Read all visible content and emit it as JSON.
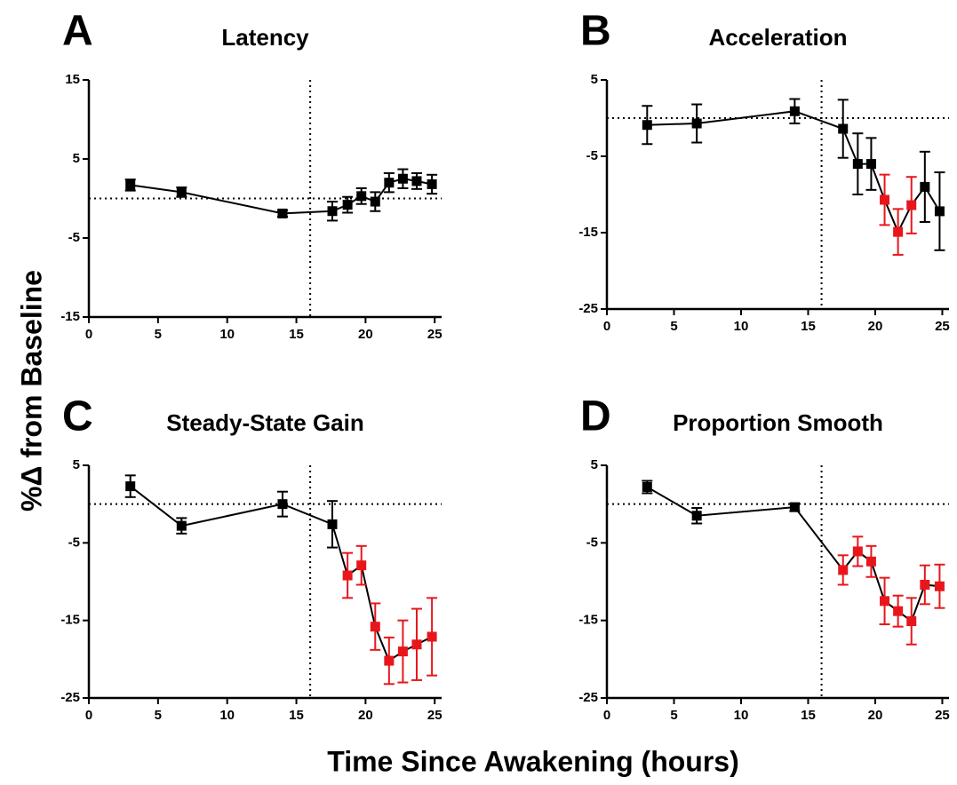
{
  "ylabel": "%Δ from Baseline",
  "xlabel": "Time Since Awakening (hours)",
  "chart_data": [
    {
      "type": "line",
      "panel_label": "A",
      "title": "Latency",
      "x": [
        3,
        6.7,
        14,
        17.6,
        18.7,
        19.7,
        20.7,
        21.7,
        22.7,
        23.7,
        24.8
      ],
      "values": [
        1.7,
        0.8,
        -1.9,
        -1.6,
        -0.8,
        0.3,
        -0.4,
        2,
        2.5,
        2.2,
        1.8
      ],
      "errors": [
        0.7,
        0.6,
        0.4,
        1.2,
        1,
        1,
        1.2,
        1.2,
        1.2,
        1,
        1.2
      ],
      "colors": [
        "#000000",
        "#000000",
        "#000000",
        "#000000",
        "#000000",
        "#000000",
        "#000000",
        "#000000",
        "#000000",
        "#000000",
        "#000000"
      ],
      "line_color": "#000000",
      "xlim": [
        0,
        25.5
      ],
      "ylim": [
        -15,
        15
      ],
      "xticks": [
        0,
        5,
        10,
        15,
        20,
        25
      ],
      "yticks": [
        -15,
        -5,
        5,
        15
      ],
      "vline": 16,
      "hline": 0
    },
    {
      "type": "line",
      "panel_label": "B",
      "title": "Acceleration",
      "x": [
        3,
        6.7,
        14,
        17.6,
        18.7,
        19.7,
        20.7,
        21.7,
        22.7,
        23.7,
        24.8
      ],
      "values": [
        -0.9,
        -0.7,
        0.9,
        -1.4,
        -6,
        -6,
        -10.7,
        -14.9,
        -11.4,
        -9,
        -12.2
      ],
      "errors": [
        2.5,
        2.5,
        1.6,
        3.8,
        4,
        3.4,
        3.3,
        3,
        3.7,
        4.6,
        5.1
      ],
      "colors": [
        "#000000",
        "#000000",
        "#000000",
        "#000000",
        "#000000",
        "#000000",
        "#e8161b",
        "#e8161b",
        "#e8161b",
        "#000000",
        "#000000"
      ],
      "line_color": "#000000",
      "xlim": [
        0,
        25.5
      ],
      "ylim": [
        -25,
        5
      ],
      "xticks": [
        0,
        5,
        10,
        15,
        20,
        25
      ],
      "yticks": [
        -25,
        -15,
        -5,
        5
      ],
      "vline": 16,
      "hline": 0
    },
    {
      "type": "line",
      "panel_label": "C",
      "title": "Steady-State Gain",
      "x": [
        3,
        6.7,
        14,
        17.6,
        18.7,
        19.7,
        20.7,
        21.7,
        22.7,
        23.7,
        24.8
      ],
      "values": [
        2.3,
        -2.8,
        0,
        -2.6,
        -9.2,
        -7.9,
        -15.8,
        -20.2,
        -19,
        -18.1,
        -17.1
      ],
      "errors": [
        1.4,
        1,
        1.6,
        3,
        2.9,
        2.5,
        3,
        3,
        4,
        4.6,
        5
      ],
      "colors": [
        "#000000",
        "#000000",
        "#000000",
        "#000000",
        "#e8161b",
        "#e8161b",
        "#e8161b",
        "#e8161b",
        "#e8161b",
        "#e8161b",
        "#e8161b"
      ],
      "line_color": "#000000",
      "xlim": [
        0,
        25.5
      ],
      "ylim": [
        -25,
        5
      ],
      "xticks": [
        0,
        5,
        10,
        15,
        20,
        25
      ],
      "yticks": [
        -25,
        -15,
        -5,
        5
      ],
      "vline": 16,
      "hline": 0
    },
    {
      "type": "line",
      "panel_label": "D",
      "title": "Proportion Smooth",
      "x": [
        3,
        6.7,
        14,
        17.6,
        18.7,
        19.7,
        20.7,
        21.7,
        22.7,
        23.7,
        24.8
      ],
      "values": [
        2.2,
        -1.5,
        -0.4,
        -8.5,
        -6.1,
        -7.4,
        -12.5,
        -13.8,
        -15.1,
        -10.4,
        -10.6
      ],
      "errors": [
        0.8,
        1,
        0.5,
        1.9,
        1.9,
        2,
        3,
        2,
        3,
        2.5,
        2.8
      ],
      "colors": [
        "#000000",
        "#000000",
        "#000000",
        "#e8161b",
        "#e8161b",
        "#e8161b",
        "#e8161b",
        "#e8161b",
        "#e8161b",
        "#e8161b",
        "#e8161b"
      ],
      "line_color": "#000000",
      "xlim": [
        0,
        25.5
      ],
      "ylim": [
        -25,
        5
      ],
      "xticks": [
        0,
        5,
        10,
        15,
        20,
        25
      ],
      "yticks": [
        -25,
        -15,
        -5,
        5
      ],
      "vline": 16,
      "hline": 0
    }
  ]
}
